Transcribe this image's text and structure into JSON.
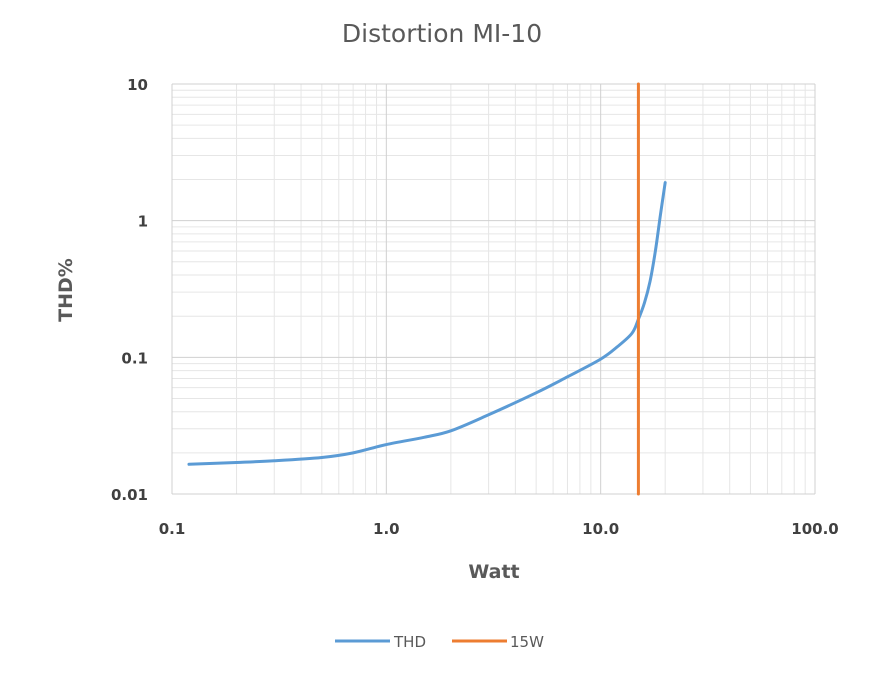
{
  "chart_data": {
    "type": "line",
    "title": "Distortion MI-10",
    "xlabel": "Watt",
    "ylabel": "THD%",
    "xscale": "log",
    "yscale": "log",
    "xlim": [
      0.1,
      100
    ],
    "ylim": [
      0.01,
      10
    ],
    "x_ticks": [
      {
        "value": 0.1,
        "label": "0.1"
      },
      {
        "value": 1,
        "label": "1.0"
      },
      {
        "value": 10,
        "label": "10.0"
      },
      {
        "value": 100,
        "label": "100.0"
      }
    ],
    "y_ticks": [
      {
        "value": 10,
        "label": "10"
      },
      {
        "value": 1,
        "label": "1"
      },
      {
        "value": 0.1,
        "label": "0.1"
      },
      {
        "value": 0.01,
        "label": "0.01"
      }
    ],
    "grid": true,
    "legend_position": "bottom",
    "series": [
      {
        "name": "THD",
        "color": "#5B9BD5",
        "x": [
          0.12,
          0.2,
          0.3,
          0.5,
          0.7,
          1.0,
          1.5,
          2.0,
          3.0,
          5.0,
          7.0,
          10.0,
          12.0,
          14.0,
          15.0,
          16.0,
          17.0,
          18.0,
          19.0,
          20.0
        ],
        "y": [
          0.0165,
          0.017,
          0.0175,
          0.0185,
          0.02,
          0.023,
          0.026,
          0.029,
          0.038,
          0.055,
          0.072,
          0.097,
          0.12,
          0.15,
          0.19,
          0.25,
          0.36,
          0.6,
          1.1,
          1.9
        ]
      },
      {
        "name": "15W",
        "color": "#ED7D31",
        "x": [
          15,
          15
        ],
        "y": [
          0.01,
          10
        ]
      }
    ]
  }
}
